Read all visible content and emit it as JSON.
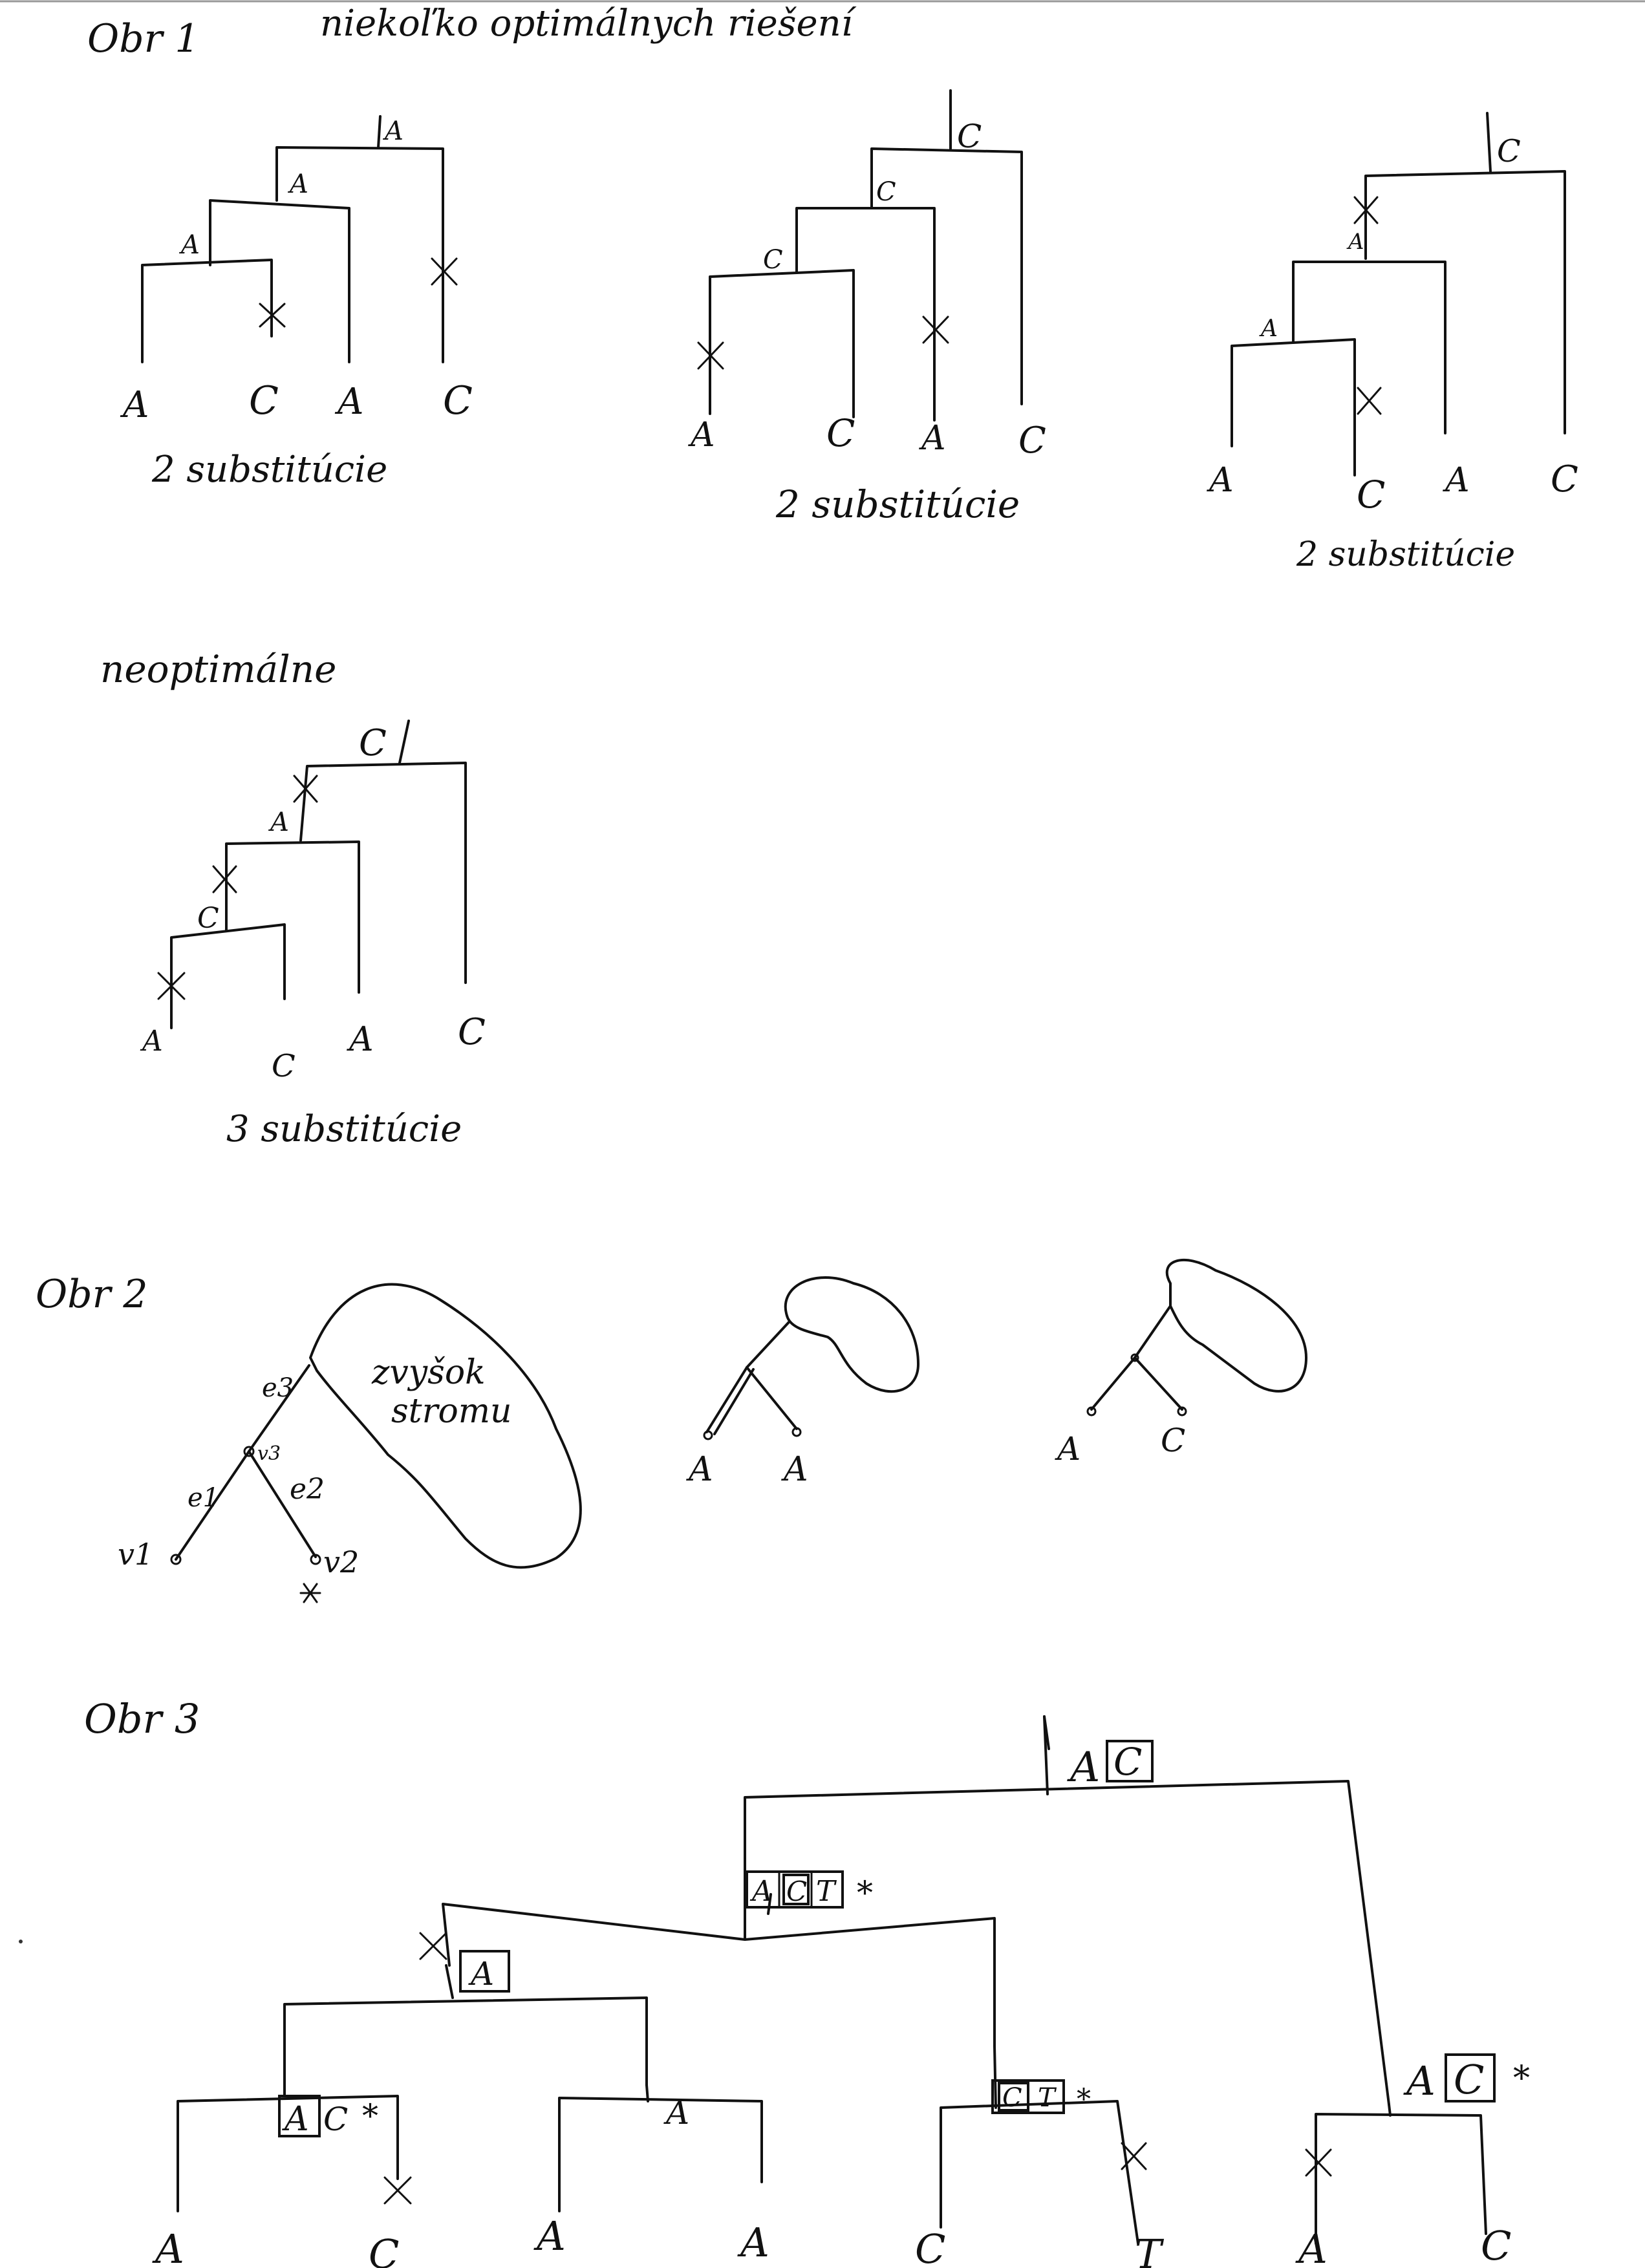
{
  "fig1": {
    "label": "Obr 1",
    "heading": "niekoľko optimálnych riešení",
    "trees": [
      {
        "leaves": [
          "A",
          "C",
          "A",
          "C"
        ],
        "internal": [
          "A",
          "A",
          "A"
        ],
        "caption": "2 substitúcie"
      },
      {
        "leaves": [
          "A",
          "C",
          "A",
          "C"
        ],
        "internal": [
          "C",
          "C",
          "C"
        ],
        "caption": "2 substitúcie"
      },
      {
        "leaves": [
          "A",
          "C",
          "A",
          "C"
        ],
        "internal": [
          "A",
          "A",
          "C"
        ],
        "caption": "2 substitúcie"
      }
    ],
    "suboptimal": {
      "heading": "neoptimálne",
      "leaves": [
        "A",
        "C",
        "A",
        "C"
      ],
      "internal": [
        "C",
        "A",
        "C"
      ],
      "caption": "3 substitúcie"
    }
  },
  "fig2": {
    "label": "Obr 2",
    "blob_text_1": "zvyšok",
    "blob_text_2": "stromu",
    "edges": [
      "e3",
      "e1",
      "e2"
    ],
    "nodes": [
      "v3",
      "v1",
      "v2"
    ],
    "pair1": [
      "A",
      "A"
    ],
    "pair2": [
      "A",
      "C"
    ]
  },
  "fig3": {
    "label": "Obr 3",
    "leaves": [
      "A",
      "C",
      "A",
      "A",
      "C",
      "T",
      "A",
      "C"
    ],
    "root": {
      "plain": "A",
      "boxed": "C"
    },
    "n_act": {
      "a": "A",
      "c": "C",
      "t": "T"
    },
    "n_a_boxed": "A",
    "n_ac": {
      "a": "A",
      "c": "C"
    },
    "n_a_plain": "A",
    "n_ct": {
      "c": "C",
      "t": "T"
    },
    "n_right": {
      "a": "A",
      "c": "C"
    },
    "star": "*"
  }
}
